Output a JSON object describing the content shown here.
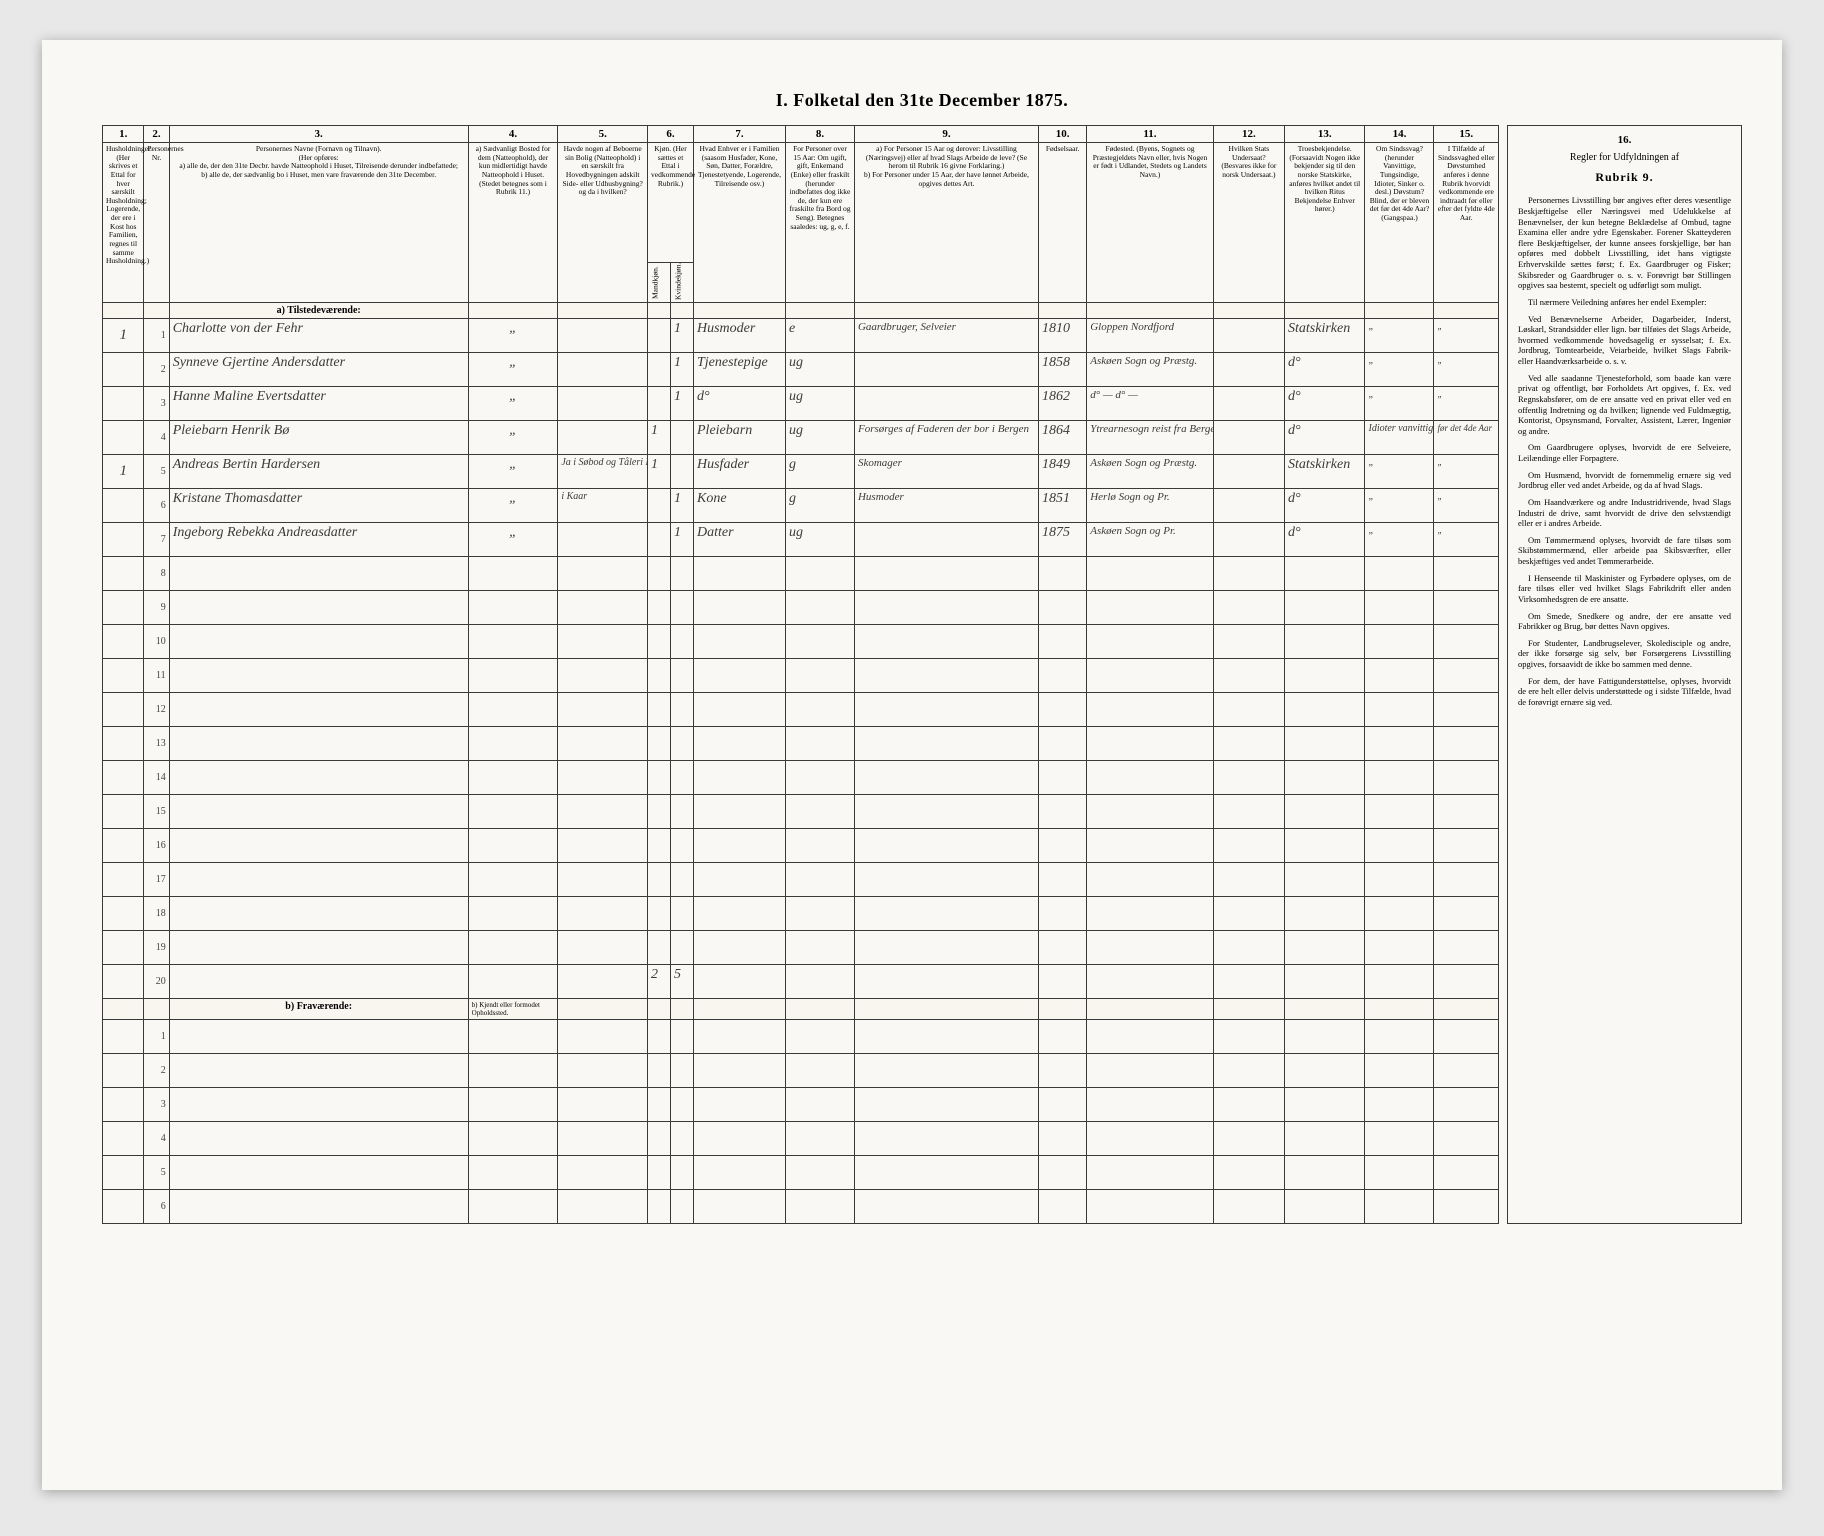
{
  "title": "I. Folketal den 31te December 1875.",
  "columns": {
    "nums": [
      "1.",
      "2.",
      "3.",
      "4.",
      "5.",
      "6.",
      "7.",
      "8.",
      "9.",
      "10.",
      "11.",
      "12.",
      "13.",
      "14.",
      "15.",
      "16."
    ],
    "c1": "Husholdninger. (Her skrives et Ettal for hver særskilt Husholdning; Logerende, der ere i Kost hos Familien, regnes til samme Husholdning.)",
    "c2": "Personernes Nr.",
    "c3": "Personernes Navne (Fornavn og Tilnavn).\n(Her opføres:\na) alle de, der den 31te Decbr. havde Natteophold i Huset, Tilreisende derunder indbefattede;\nb) alle de, der sædvanlig bo i Huset, men vare fraværende den 31te December.",
    "c4": "a) Sædvanligt Bosted for dem (Natteophold), der kun midlertidigt havde Natteophold i Huset. (Stedet betegnes som i Rubrik 11.)",
    "c5": "Havde nogen af Beboerne sin Bolig (Natteophold) i en særskilt fra Hovedbygningen adskilt Side- eller Udhusbygning? og da i hvilken?",
    "c6": "Kjøn. (Her sættes et Ettal i vedkommende Rubrik.)",
    "c6a": "Mandkjøn.",
    "c6b": "Kvindekjøn.",
    "c7": "Hvad Enhver er i Familien (saasom Husfader, Kone, Søn, Datter, Forældre, Tjenestetyende, Logerende, Tilreisende osv.)",
    "c8": "For Personer over 15 Aar: Om ugift, gift, Enkemand (Enke) eller fraskilt (herunder indbefattes dog ikke de, der kun ere fraskilte fra Bord og Seng). Betegnes saaledes: ug, g, e, f.",
    "c9": "a) For Personer 15 Aar og derover: Livsstilling (Næringsvej) eller af hvad Slags Arbeide de leve? (Se herom til Rubrik 16 givne Forklaring.)\nb) For Personer under 15 Aar, der have lønnet Arbeide, opgives dettes Art.",
    "c10": "Fødselsaar.",
    "c11": "Fødested.\n(Byens, Sognets og Præstegjeldets Navn eller, hvis Nogen er født i Udlandet, Stedets og Landets Navn.)",
    "c12": "Hvilken Stats Undersaat? (Besvares ikke for norsk Undersaat.)",
    "c13": "Troesbekjendelse. (Forsaavidt Nogen ikke bekjender sig til den norske Statskirke, anføres hvilket andet til hvilken Ritus Bekjendelse Enhver hører.)",
    "c14": "Om Sindssvag? (herunder Vanvittige, Tungsindige, Idioter, Sinker o. desl.) Døvstum? Blind, der er bleven det før det 4de Aar? (Gangspaa.)",
    "c15": "I Tilfælde af Sindssvaghed eller Døvstumhed anføres i denne Rubrik hvorvidt vedkommende ere indtraadt før eller efter det fyldte 4de Aar.",
    "c16_title": "Regler for Udfyldningen af",
    "c16_rubrik": "Rubrik 9."
  },
  "sections": {
    "present": "a) Tilstedeværende:",
    "absent": "b) Fraværende:",
    "absent_note": "b) Kjendt eller formodet Opholdssted."
  },
  "rows": [
    {
      "hh": "1",
      "n": "1",
      "name": "Charlotte von der Fehr",
      "c4": "„",
      "c5": "",
      "m": "",
      "k": "1",
      "fam": "Husmoder",
      "civ": "e",
      "occ": "Gaardbruger, Selveier",
      "yr": "1810",
      "born": "Gloppen Nordfjord",
      "stat": "",
      "rel": "Statskirken",
      "c14": "„",
      "c15": "„"
    },
    {
      "hh": "",
      "n": "2",
      "name": "Synneve Gjertine Andersdatter",
      "c4": "„",
      "c5": "",
      "m": "",
      "k": "1",
      "fam": "Tjenestepige",
      "civ": "ug",
      "occ": "",
      "yr": "1858",
      "born": "Askøen Sogn og Præstg.",
      "stat": "",
      "rel": "d°",
      "c14": "„",
      "c15": "„"
    },
    {
      "hh": "",
      "n": "3",
      "name": "Hanne Maline Evertsdatter",
      "c4": "„",
      "c5": "",
      "m": "",
      "k": "1",
      "fam": "d°",
      "civ": "ug",
      "occ": "",
      "yr": "1862",
      "born": "d° — d° —",
      "stat": "",
      "rel": "d°",
      "c14": "„",
      "c15": "„"
    },
    {
      "hh": "",
      "n": "4",
      "name": "Pleiebarn Henrik Bø",
      "c4": "„",
      "c5": "",
      "m": "1",
      "k": "",
      "fam": "Pleiebarn",
      "civ": "ug",
      "occ": "Forsørges af Faderen der bor i Bergen",
      "yr": "1864",
      "born": "Ytrearnesogn reist fra Bergen",
      "stat": "",
      "rel": "d°",
      "c14": "Idioter vanvittig",
      "c15": "før det 4de Aar"
    },
    {
      "hh": "1",
      "n": "5",
      "name": "Andreas Bertin Hardersen",
      "c4": "„",
      "c5": "Ja i Søbod og Tåleri Kaar",
      "m": "1",
      "k": "",
      "fam": "Husfader",
      "civ": "g",
      "occ": "Skomager",
      "yr": "1849",
      "born": "Askøen Sogn og Præstg.",
      "stat": "",
      "rel": "Statskirken",
      "c14": "„",
      "c15": "„"
    },
    {
      "hh": "",
      "n": "6",
      "name": "Kristane Thomasdatter",
      "c4": "„",
      "c5": "i Kaar",
      "m": "",
      "k": "1",
      "fam": "Kone",
      "civ": "g",
      "occ": "Husmoder",
      "yr": "1851",
      "born": "Herlø Sogn og Pr.",
      "stat": "",
      "rel": "d°",
      "c14": "„",
      "c15": "„"
    },
    {
      "hh": "",
      "n": "7",
      "name": "Ingeborg Rebekka Andreasdatter",
      "c4": "„",
      "c5": "",
      "m": "",
      "k": "1",
      "fam": "Datter",
      "civ": "ug",
      "occ": "",
      "yr": "1875",
      "born": "Askøen Sogn og Pr.",
      "stat": "",
      "rel": "d°",
      "c14": "„",
      "c15": "„"
    }
  ],
  "totals": {
    "m": "2",
    "k": "5"
  },
  "sidebar": {
    "p1": "Personernes Livsstilling bør angives efter deres væsentlige Beskjæftigelse eller Næringsvei med Udelukkelse af Benævnelser, der kun betegne Beklædelse af Ombud, tagne Examina eller andre ydre Egenskaber. Forener Skatteyderen flere Beskjæftigelser, der kunne ansees forskjellige, bør han opføres med dobbelt Livsstilling, idet hans vigtigste Erhvervskilde sættes først; f. Ex. Gaardbruger og Fisker; Skibsreder og Gaardbruger o. s. v. Forøvrigt bør Stillingen opgives saa bestemt, specielt og udførligt som muligt.",
    "p2": "Til nærmere Veiledning anføres her endel Exempler:",
    "p3": "Ved Benævnelserne Arbeider, Dagarbeider, Inderst, Løskarl, Strandsidder eller lign. bør tilføies det Slags Arbeide, hvormed vedkommende hovedsagelig er sysselsat; f. Ex. Jordbrug, Tomtearbeide, Veiarbeide, hvilket Slags Fabrik- eller Haandværksarbeide o. s. v.",
    "p4": "Ved alle saadanne Tjenesteforhold, som baade kan være privat og offentligt, bør Forholdets Art opgives, f. Ex. ved Regnskabsfører, om de ere ansatte ved en privat eller ved en offentlig Indretning og da hvilken; lignende ved Fuldmægtig, Kontorist, Opsynsmand, Forvalter, Assistent, Lærer, Ingeniør og andre.",
    "p5": "Om Gaardbrugere oplyses, hvorvidt de ere Selveiere, Leilændinge eller Forpagtere.",
    "p6": "Om Husmænd, hvorvidt de fornemmelig ernære sig ved Jordbrug eller ved andet Arbeide, og da af hvad Slags.",
    "p7": "Om Haandværkere og andre Industridrivende, hvad Slags Industri de drive, samt hvorvidt de drive den selvstændigt eller er i andres Arbeide.",
    "p8": "Om Tømmermænd oplyses, hvorvidt de fare tilsøs som Skibstømmermænd, eller arbeide paa Skibsværfter, eller beskjæftiges ved andet Tømmerarbeide.",
    "p9": "I Henseende til Maskinister og Fyrbødere oplyses, om de fare tilsøs eller ved hvilket Slags Fabrikdrift eller anden Virksomhedsgren de ere ansatte.",
    "p10": "Om Smede, Snedkere og andre, der ere ansatte ved Fabrikker og Brug, bør dettes Navn opgives.",
    "p11": "For Studenter, Landbrugselever, Skoledisciple og andre, der ikke forsørge sig selv, bør Forsørgerens Livsstilling opgives, forsaavidt de ikke bo sammen med denne.",
    "p12": "For dem, der have Fattigunderstøttelse, oplyses, hvorvidt de ere helt eller delvis understøttede og i sidste Tilfælde, hvad de forøvrigt ernære sig ved."
  }
}
